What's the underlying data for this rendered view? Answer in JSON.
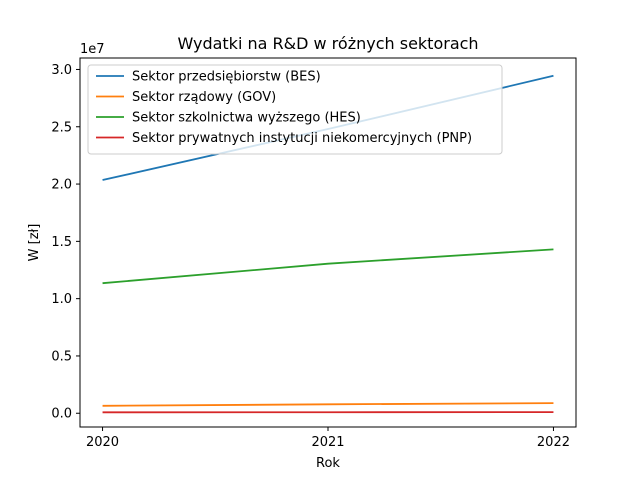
{
  "chart_data": {
    "type": "line",
    "title": "Wydatki na R&D w różnych sektorach",
    "xlabel": "Rok",
    "ylabel": "W [zł]",
    "y_offset_label": "1e7",
    "x": [
      2020,
      2021,
      2022
    ],
    "xlim": [
      2019.9,
      2022.1
    ],
    "ylim": [
      -1200000,
      31000000
    ],
    "xticks": [
      {
        "value": 2020,
        "label": "2020"
      },
      {
        "value": 2021,
        "label": "2021"
      },
      {
        "value": 2022,
        "label": "2022"
      }
    ],
    "yticks": [
      {
        "value": 0,
        "label": "0.0"
      },
      {
        "value": 5000000,
        "label": "0.5"
      },
      {
        "value": 10000000,
        "label": "1.0"
      },
      {
        "value": 15000000,
        "label": "1.5"
      },
      {
        "value": 20000000,
        "label": "2.0"
      },
      {
        "value": 25000000,
        "label": "2.5"
      },
      {
        "value": 30000000,
        "label": "3.0"
      }
    ],
    "grid": false,
    "legend_position": "top-left",
    "series": [
      {
        "name": "Sektor przedsiębiorstw (BES)",
        "color": "#1f77b4",
        "values": [
          20350000,
          24800000,
          29450000
        ]
      },
      {
        "name": "Sektor rządowy (GOV)",
        "color": "#ff7f0e",
        "values": [
          650000,
          780000,
          880000
        ]
      },
      {
        "name": "Sektor szkolnictwa wyższego (HES)",
        "color": "#2ca02c",
        "values": [
          11350000,
          13050000,
          14300000
        ]
      },
      {
        "name": "Sektor prywatnych instytucji niekomercyjnych (PNP)",
        "color": "#d62728",
        "values": [
          80000,
          90000,
          100000
        ]
      }
    ]
  }
}
